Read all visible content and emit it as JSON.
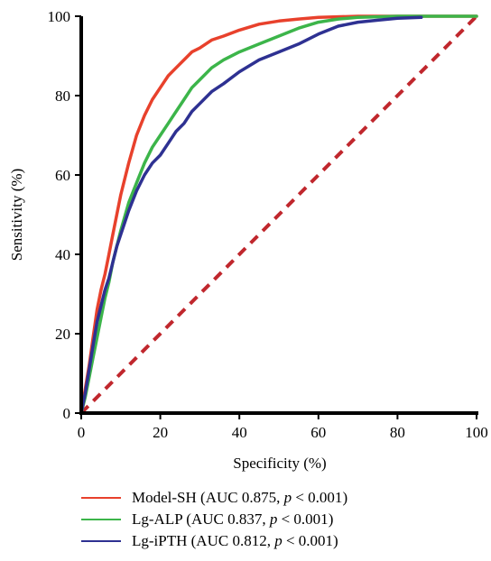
{
  "chart_data": {
    "type": "line",
    "title": "",
    "xlabel": "Specificity (%)",
    "ylabel": "Sensitivity (%)",
    "xlim": [
      0,
      100
    ],
    "ylim": [
      0,
      100
    ],
    "x_ticks": [
      "0",
      "20",
      "40",
      "60",
      "80",
      "100"
    ],
    "y_ticks": [
      "0",
      "20",
      "40",
      "60",
      "80",
      "100"
    ],
    "grid": false,
    "legend_position": "bottom",
    "reference_line": {
      "x": [
        0,
        100
      ],
      "y": [
        0,
        100
      ],
      "color": "#c0272d",
      "style": "dashed"
    },
    "series": [
      {
        "name": "Model-SH",
        "color": "#e8412c",
        "auc": "0.875",
        "p": "p",
        "p_text": "< 0.001",
        "x": [
          0,
          1,
          2,
          3,
          4,
          5,
          6,
          7,
          8,
          9,
          10,
          12,
          14,
          16,
          18,
          20,
          22,
          24,
          26,
          28,
          30,
          33,
          36,
          40,
          45,
          50,
          55,
          60,
          70,
          80,
          90,
          100
        ],
        "y": [
          0,
          6,
          12,
          19,
          26,
          31,
          35,
          40,
          45,
          50,
          55,
          63,
          70,
          75,
          79,
          82,
          85,
          87,
          89,
          91,
          92,
          94,
          95,
          96.5,
          98,
          98.8,
          99.3,
          99.7,
          100,
          100,
          100,
          100
        ]
      },
      {
        "name": "Lg-ALP",
        "color": "#3cb54a",
        "auc": "0.837",
        "p": "p",
        "p_text": "< 0.001",
        "x": [
          0,
          1,
          2,
          3,
          4,
          5,
          6,
          7,
          8,
          9,
          10,
          12,
          14,
          16,
          18,
          20,
          22,
          24,
          26,
          28,
          30,
          33,
          36,
          40,
          45,
          50,
          55,
          60,
          65,
          70,
          80,
          90,
          100
        ],
        "y": [
          0,
          4,
          9,
          14,
          19,
          24,
          29,
          33,
          38,
          42,
          46,
          53,
          58,
          63,
          67,
          70,
          73,
          76,
          79,
          82,
          84,
          87,
          89,
          91,
          93,
          95,
          97,
          98.5,
          99.3,
          99.7,
          100,
          100,
          100
        ]
      },
      {
        "name": "Lg-iPTH",
        "color": "#2e3192",
        "auc": "0.812",
        "p": "p",
        "p_text": "< 0.001",
        "x": [
          0,
          1,
          2,
          3,
          4,
          5,
          6,
          7,
          8,
          9,
          10,
          12,
          14,
          16,
          18,
          20,
          22,
          24,
          26,
          28,
          30,
          33,
          36,
          40,
          45,
          50,
          55,
          60,
          65,
          70,
          75,
          80,
          86
        ],
        "y": [
          0,
          5,
          11,
          17,
          23,
          27,
          31,
          34,
          38,
          42,
          45,
          51,
          56,
          60,
          63,
          65,
          68,
          71,
          73,
          76,
          78,
          81,
          83,
          86,
          89,
          91,
          93,
          95.5,
          97.5,
          98.5,
          99,
          99.5,
          99.7
        ]
      }
    ]
  }
}
